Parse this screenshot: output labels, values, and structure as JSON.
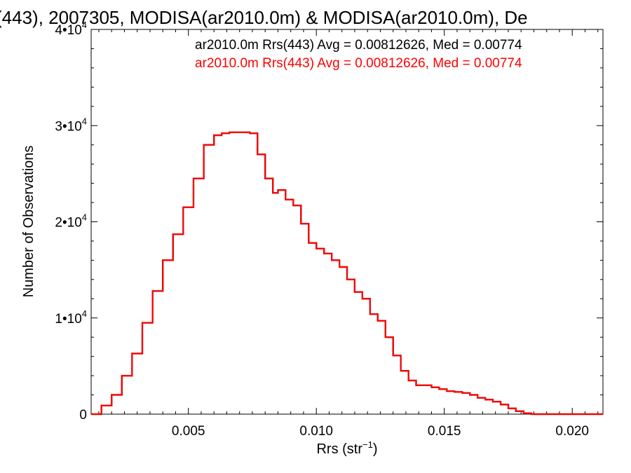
{
  "chart_data": {
    "type": "line",
    "title": "(443), 2007305, MODISA(ar2010.0m) & MODISA(ar2010.0m), De",
    "xlabel_main": "Rrs (str",
    "xlabel_sup": "−1",
    "xlabel_close": ")",
    "ylabel": "Number of Observations",
    "xlim": [
      0.0012,
      0.0212
    ],
    "ylim": [
      0,
      40000
    ],
    "x_ticks": [
      {
        "value": 0.005,
        "label": "0.005"
      },
      {
        "value": 0.01,
        "label": "0.010"
      },
      {
        "value": 0.015,
        "label": "0.015"
      },
      {
        "value": 0.02,
        "label": "0.020"
      }
    ],
    "y_ticks": [
      {
        "value": 0,
        "label": "0",
        "exp": ""
      },
      {
        "value": 10000,
        "label": "1•10",
        "exp": "4"
      },
      {
        "value": 20000,
        "label": "2•10",
        "exp": "4"
      },
      {
        "value": 30000,
        "label": "3•10",
        "exp": "4"
      },
      {
        "value": 40000,
        "label": "4•10",
        "exp": "4"
      }
    ],
    "grid": false,
    "legend": [
      {
        "text": "ar2010.0m Rrs(443) Avg = 0.00812626, Med = 0.00774",
        "color": "#000000"
      },
      {
        "text": "ar2010.0m Rrs(443) Avg = 0.00812626, Med = 0.00774",
        "color": "#ff0000"
      }
    ],
    "series": [
      {
        "color": "#000000",
        "x": [
          0.0012,
          0.0016,
          0.002,
          0.0024,
          0.0028,
          0.0032,
          0.0036,
          0.004,
          0.0044,
          0.0048,
          0.0052,
          0.0056,
          0.006,
          0.0063,
          0.0066,
          0.007,
          0.0074,
          0.0077,
          0.008,
          0.0083,
          0.0085,
          0.0088,
          0.0091,
          0.0094,
          0.0097,
          0.01,
          0.0103,
          0.0106,
          0.0109,
          0.0112,
          0.0115,
          0.0118,
          0.0121,
          0.0124,
          0.0127,
          0.013,
          0.0133,
          0.0136,
          0.0139,
          0.0142,
          0.0145,
          0.0148,
          0.0151,
          0.0154,
          0.0157,
          0.016,
          0.0163,
          0.0166,
          0.0169,
          0.0172,
          0.0175,
          0.0178,
          0.0181,
          0.0184,
          0.019,
          0.02,
          0.0212
        ],
        "y": [
          0,
          900,
          2000,
          4000,
          6300,
          9500,
          12800,
          16000,
          18700,
          21500,
          24500,
          28000,
          29000,
          29200,
          29300,
          29300,
          29200,
          27000,
          24500,
          23000,
          23300,
          22300,
          21700,
          19800,
          17800,
          17200,
          16700,
          16000,
          15300,
          14000,
          12700,
          12000,
          10400,
          9700,
          8000,
          6100,
          4500,
          3500,
          3000,
          3000,
          2800,
          2600,
          2400,
          2300,
          2200,
          2000,
          1700,
          1500,
          1300,
          1000,
          600,
          300,
          100,
          0,
          0,
          0,
          0
        ]
      },
      {
        "color": "#ff0000",
        "x": [
          0.0012,
          0.0016,
          0.002,
          0.0024,
          0.0028,
          0.0032,
          0.0036,
          0.004,
          0.0044,
          0.0048,
          0.0052,
          0.0056,
          0.006,
          0.0063,
          0.0066,
          0.007,
          0.0074,
          0.0077,
          0.008,
          0.0083,
          0.0085,
          0.0088,
          0.0091,
          0.0094,
          0.0097,
          0.01,
          0.0103,
          0.0106,
          0.0109,
          0.0112,
          0.0115,
          0.0118,
          0.0121,
          0.0124,
          0.0127,
          0.013,
          0.0133,
          0.0136,
          0.0139,
          0.0142,
          0.0145,
          0.0148,
          0.0151,
          0.0154,
          0.0157,
          0.016,
          0.0163,
          0.0166,
          0.0169,
          0.0172,
          0.0175,
          0.0178,
          0.0181,
          0.0184,
          0.019,
          0.02,
          0.0212
        ],
        "y": [
          0,
          900,
          2000,
          4000,
          6300,
          9500,
          12800,
          16000,
          18700,
          21500,
          24500,
          28000,
          29000,
          29200,
          29300,
          29300,
          29200,
          27000,
          24500,
          23000,
          23300,
          22300,
          21700,
          19800,
          17800,
          17200,
          16700,
          16000,
          15300,
          14000,
          12700,
          12000,
          10400,
          9700,
          8000,
          6100,
          4500,
          3500,
          3000,
          3000,
          2800,
          2600,
          2400,
          2300,
          2200,
          2000,
          1700,
          1500,
          1300,
          1000,
          600,
          300,
          100,
          0,
          0,
          0,
          0
        ]
      }
    ]
  }
}
